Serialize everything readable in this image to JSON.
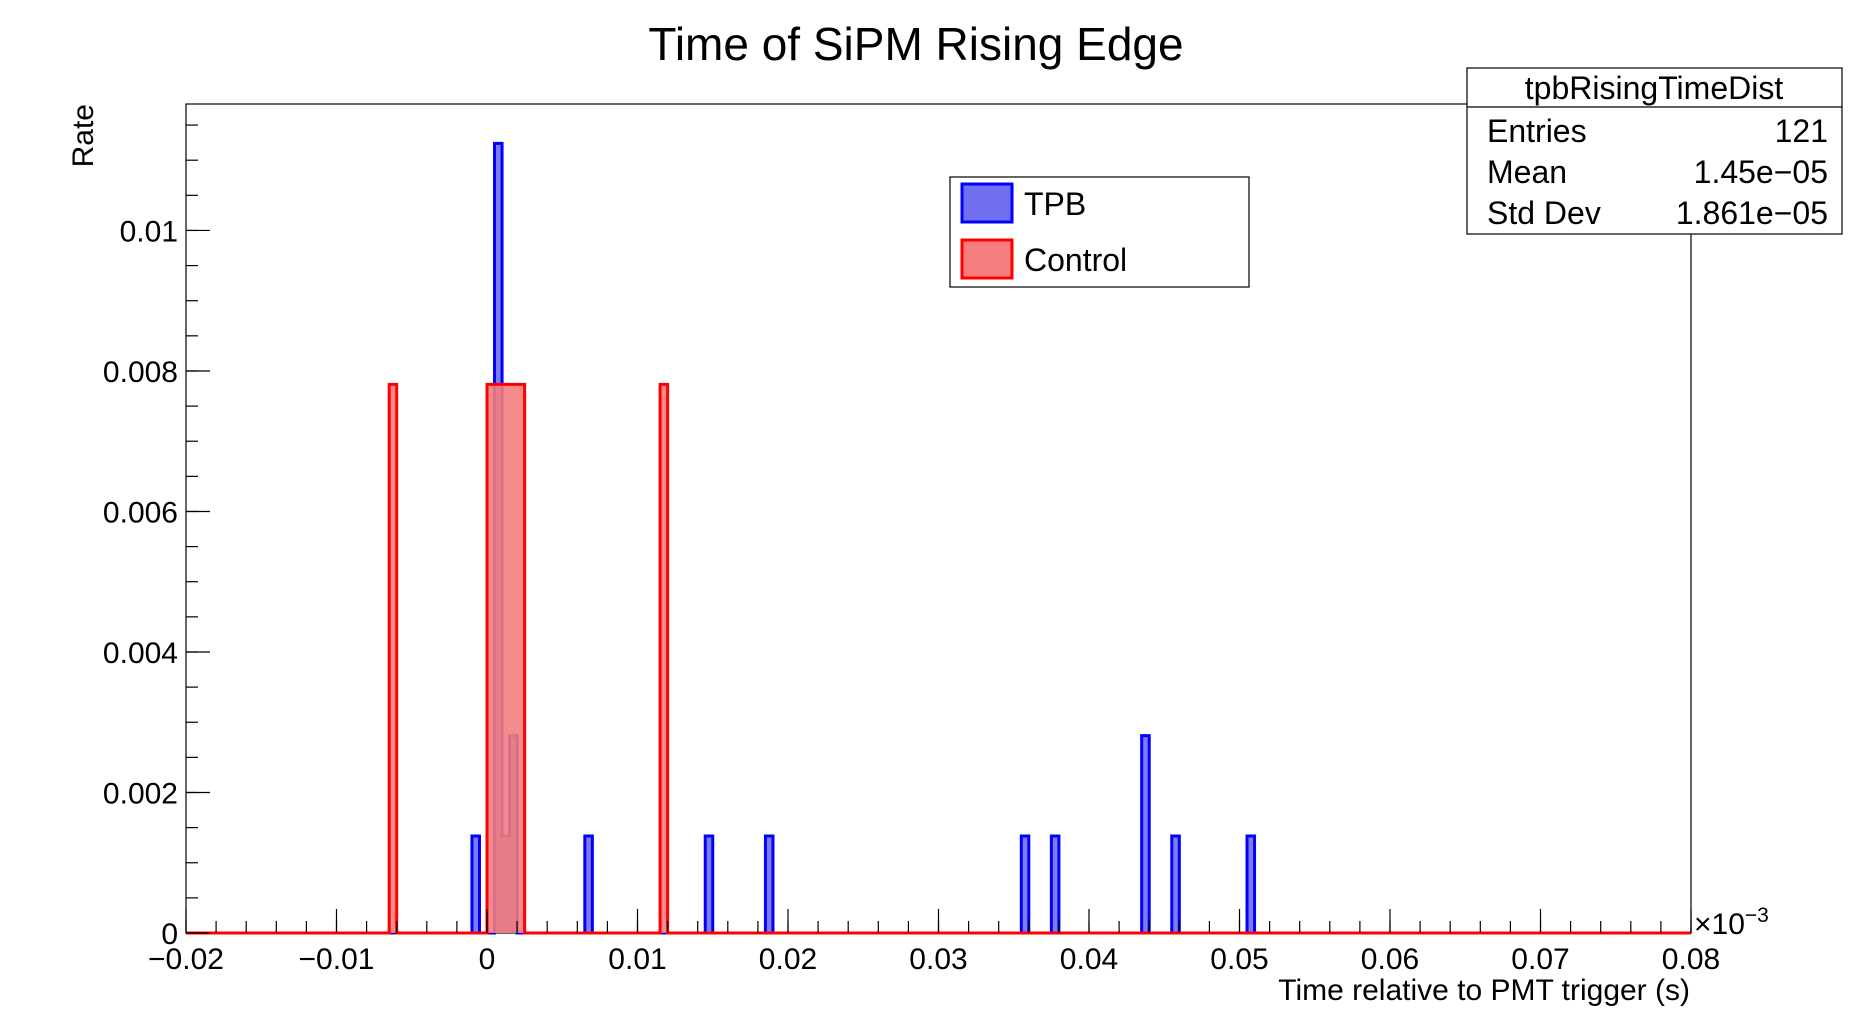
{
  "chart_data": {
    "type": "bar",
    "title": "Time of SiPM Rising Edge",
    "xlabel": "Time relative to PMT trigger (s)",
    "ylabel": "Rate",
    "x_multiplier_label": "×10",
    "x_multiplier_exponent": "−3",
    "xlim": [
      -0.02,
      0.08
    ],
    "ylim": [
      0,
      0.0118
    ],
    "x_tick_labels": [
      {
        "value": -0.02,
        "label": "−0.02"
      },
      {
        "value": -0.01,
        "label": "−0.01"
      },
      {
        "value": 0,
        "label": "0"
      },
      {
        "value": 0.01,
        "label": "0.01"
      },
      {
        "value": 0.02,
        "label": "0.02"
      },
      {
        "value": 0.03,
        "label": "0.03"
      },
      {
        "value": 0.04,
        "label": "0.04"
      },
      {
        "value": 0.05,
        "label": "0.05"
      },
      {
        "value": 0.06,
        "label": "0.06"
      },
      {
        "value": 0.07,
        "label": "0.07"
      },
      {
        "value": 0.08,
        "label": "0.08"
      }
    ],
    "y_tick_labels": [
      {
        "value": 0,
        "label": "0"
      },
      {
        "value": 0.002,
        "label": "0.002"
      },
      {
        "value": 0.004,
        "label": "0.004"
      },
      {
        "value": 0.006,
        "label": "0.006"
      },
      {
        "value": 0.008,
        "label": "0.008"
      },
      {
        "value": 0.01,
        "label": "0.01"
      }
    ],
    "bin_width": 0.0005,
    "series": [
      {
        "name": "TPB",
        "color": "#0000ff",
        "fill": "#6f6ff0",
        "bins": [
          {
            "x": -0.001,
            "y": 0.00138
          },
          {
            "x": 0.0005,
            "y": 0.01124
          },
          {
            "x": 0.001,
            "y": 0.00138
          },
          {
            "x": 0.0015,
            "y": 0.00281
          },
          {
            "x": 0.0065,
            "y": 0.00138
          },
          {
            "x": 0.0145,
            "y": 0.00138
          },
          {
            "x": 0.0185,
            "y": 0.00138
          },
          {
            "x": 0.0355,
            "y": 0.00138
          },
          {
            "x": 0.0375,
            "y": 0.00138
          },
          {
            "x": 0.0435,
            "y": 0.00281
          },
          {
            "x": 0.0455,
            "y": 0.00138
          },
          {
            "x": 0.0505,
            "y": 0.00138
          }
        ]
      },
      {
        "name": "Control",
        "color": "#ff0000",
        "fill": "#f47d7d",
        "bins": [
          {
            "x": -0.0065,
            "y": 0.00781
          },
          {
            "x": 0.0,
            "y": 0.00781
          },
          {
            "x": 0.0005,
            "y": 0.00781
          },
          {
            "x": 0.001,
            "y": 0.00781
          },
          {
            "x": 0.0015,
            "y": 0.00781
          },
          {
            "x": 0.002,
            "y": 0.00781
          },
          {
            "x": 0.0115,
            "y": 0.00781
          }
        ]
      }
    ],
    "legend": {
      "placement": "top-center",
      "entries": [
        "TPB",
        "Control"
      ]
    }
  },
  "stats_box": {
    "name": "tpbRisingTimeDist",
    "rows": [
      {
        "label": "Entries",
        "value": "121"
      },
      {
        "label": "Mean",
        "value": "1.45e−05"
      },
      {
        "label": "Std Dev",
        "value": "1.861e−05"
      }
    ]
  }
}
